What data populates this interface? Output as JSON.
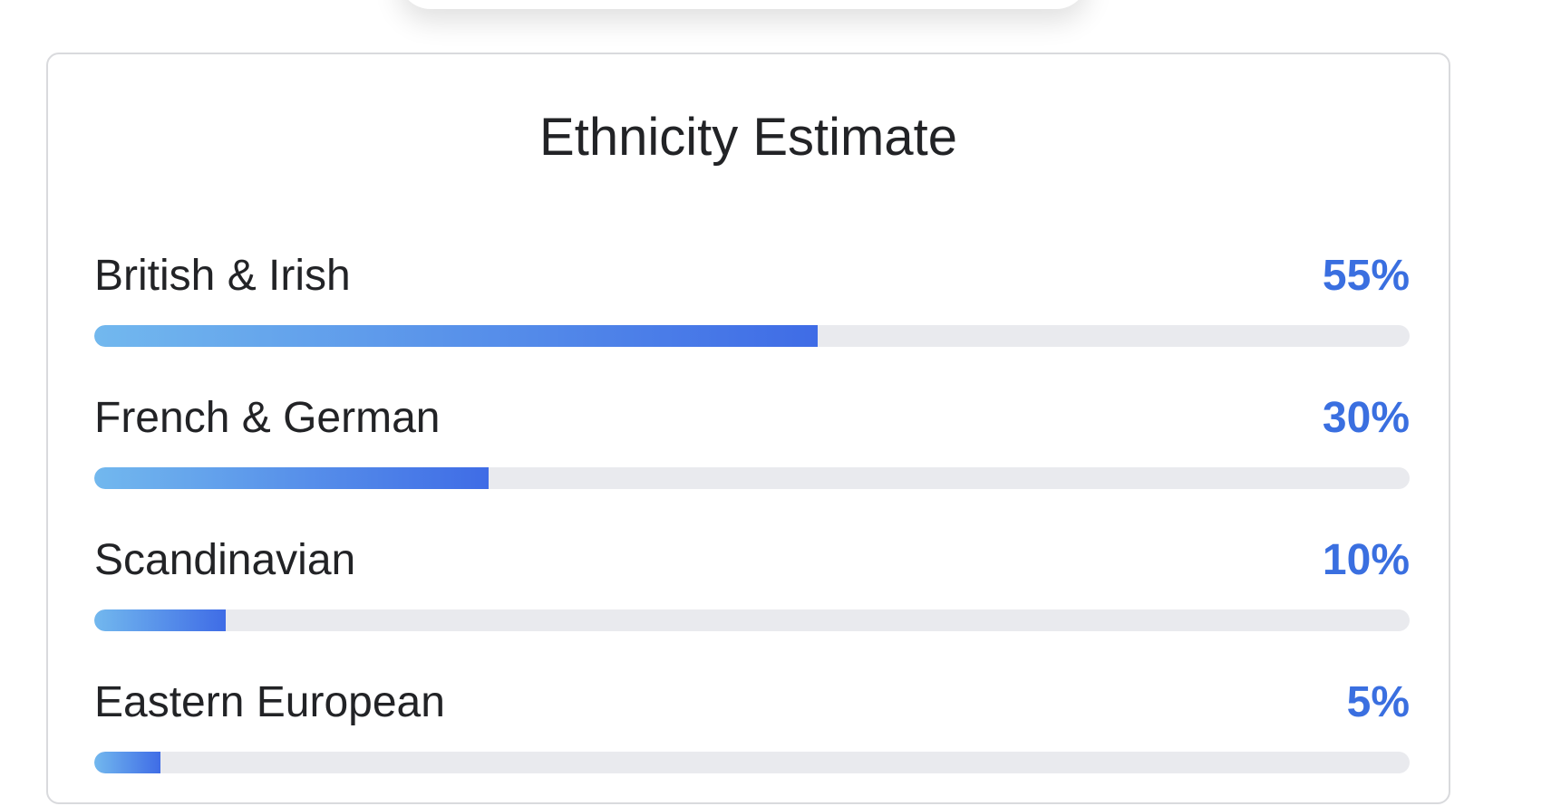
{
  "card": {
    "title": "Ethnicity Estimate"
  },
  "ethnicities": [
    {
      "label": "British & Irish",
      "percent_text": "55%",
      "percent": 55
    },
    {
      "label": "French & German",
      "percent_text": "30%",
      "percent": 30
    },
    {
      "label": "Scandinavian",
      "percent_text": "10%",
      "percent": 10
    },
    {
      "label": "Eastern European",
      "percent_text": "5%",
      "percent": 5
    }
  ],
  "colors": {
    "percent_text": "#3a6fe0",
    "bar_start": "#72b8ee",
    "bar_end": "#3f6ce6",
    "track": "#e9eaee"
  }
}
